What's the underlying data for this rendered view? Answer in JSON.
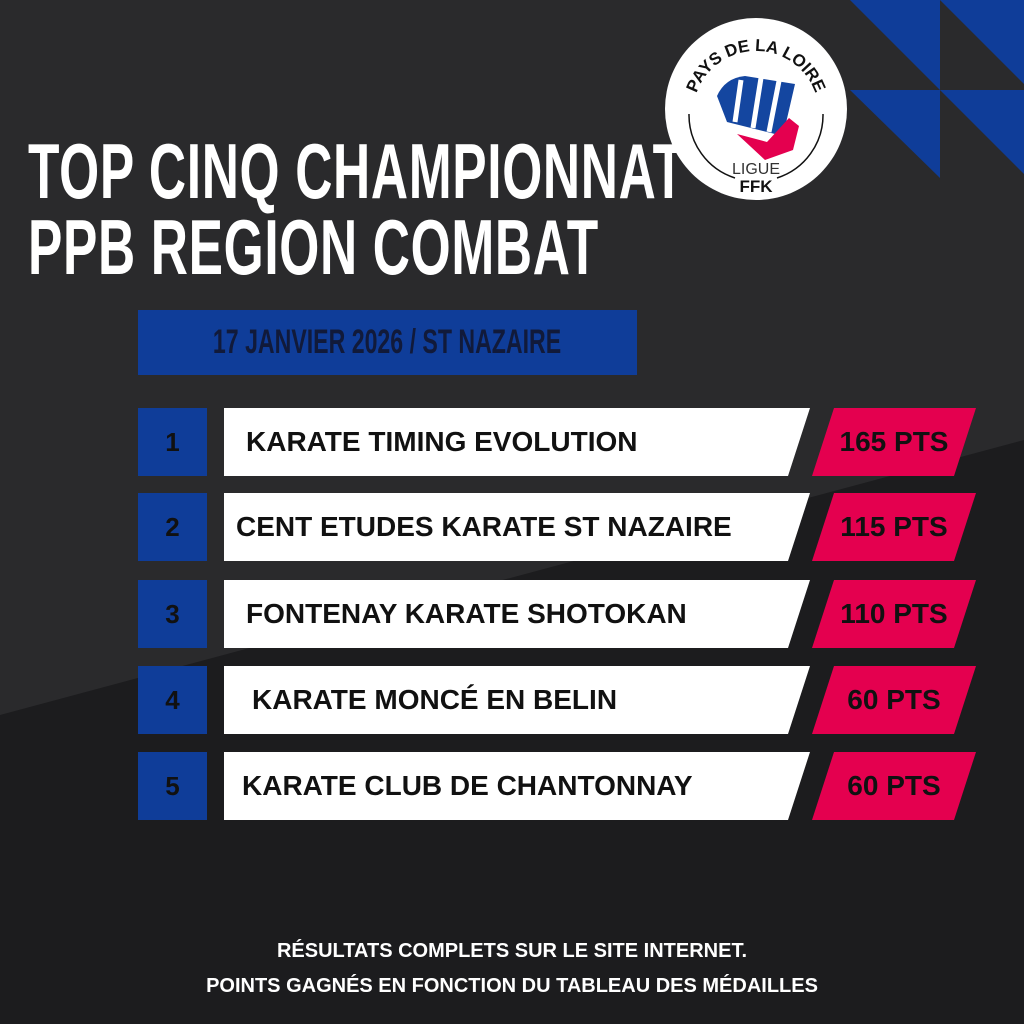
{
  "title": {
    "line1": "TOP CINQ CHAMPIONNAT",
    "line2": "PPB REGION COMBAT"
  },
  "logo": {
    "top_text": "PAYS DE LA LOIRE",
    "ligue": "LIGUE",
    "ffk": "FFK"
  },
  "event": "17 JANVIER 2026 / ST NAZAIRE",
  "ranking": [
    {
      "rank": "1",
      "club": "KARATE TIMING EVOLUTION",
      "points": "165 PTS"
    },
    {
      "rank": "2",
      "club": "CENT ETUDES KARATE ST NAZAIRE",
      "points": "115 PTS"
    },
    {
      "rank": "3",
      "club": "FONTENAY KARATE SHOTOKAN",
      "points": "110 PTS"
    },
    {
      "rank": "4",
      "club": "KARATE MONCÉ EN BELIN",
      "points": "60 PTS"
    },
    {
      "rank": "5",
      "club": "KARATE CLUB DE CHANTONNAY",
      "points": "60 PTS"
    }
  ],
  "footer": {
    "line1": "RÉSULTATS COMPLETS SUR LE SITE INTERNET.",
    "line2": "POINTS GAGNÉS EN FONCTION DU TABLEAU DES MÉDAILLES"
  },
  "colors": {
    "blue": "#0f3d99",
    "pink": "#e4004f",
    "background": "#1c1c1e"
  }
}
